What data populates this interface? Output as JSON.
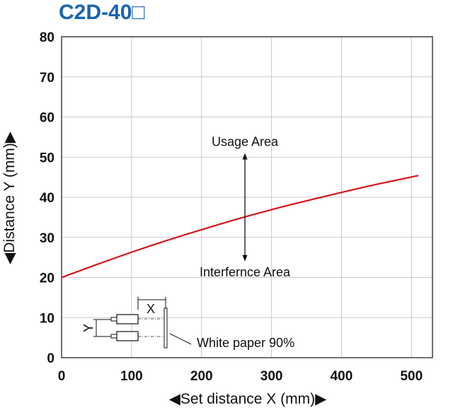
{
  "chart_data": {
    "type": "line",
    "title": "C2D-40□",
    "xlabel": "◀Set distance X (mm)▶",
    "ylabel": "◀Distance Y (mm)▶",
    "xlim": [
      0,
      530
    ],
    "ylim": [
      0,
      80
    ],
    "xticks": [
      "0",
      "100",
      "200",
      "300",
      "400",
      "500"
    ],
    "yticks": [
      "0",
      "10",
      "20",
      "30",
      "40",
      "50",
      "60",
      "70",
      "80"
    ],
    "grid": true,
    "series": [
      {
        "color": "#d7141a",
        "x": [
          0,
          50,
          100,
          150,
          200,
          250,
          300,
          350,
          400,
          450,
          510
        ],
        "y": [
          20,
          23.2,
          26.3,
          29.2,
          31.9,
          34.5,
          36.9,
          39.1,
          41.2,
          43.2,
          45.4
        ]
      }
    ],
    "annotations": {
      "usage_area": "Usage Area",
      "interference_area": "Interfernce Area",
      "arrow_x": 262,
      "arrow_y_top": 51,
      "arrow_y_bottom": 24,
      "inset": {
        "x_label": "X",
        "y_label": "Y",
        "target_label": "White paper 90%"
      }
    },
    "colors": {
      "title": "#1a64b4",
      "line": "#d7141a",
      "grid": "#c8c8c8",
      "axis": "#111111"
    }
  }
}
